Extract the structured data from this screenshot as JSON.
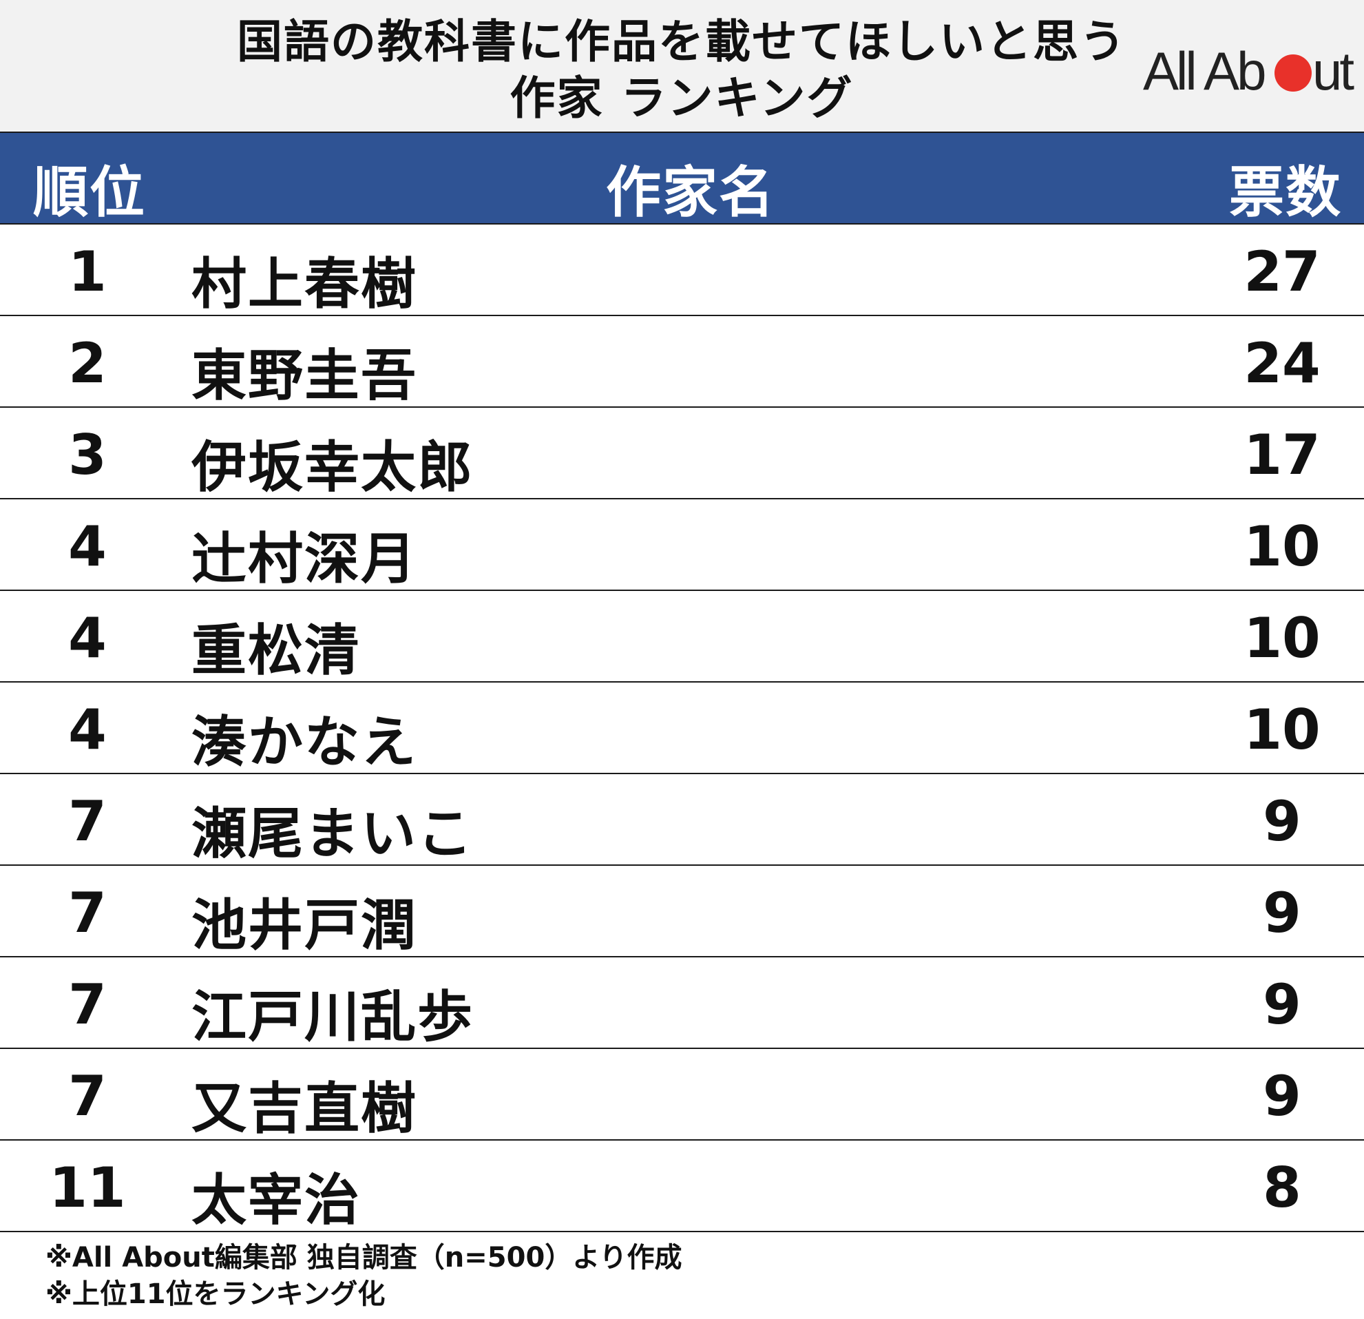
{
  "title_line1": "国語の教科書に作品を載せてほしいと思う",
  "title_line2": "作家 ランキング",
  "logo": {
    "text_left": "All Ab",
    "text_right": "ut",
    "dot_color": "#e8312a"
  },
  "colors": {
    "header_bg": "#2f5394",
    "title_bg": "#f2f2f2"
  },
  "chart_data": {
    "type": "table",
    "columns": [
      "順位",
      "作家名",
      "票数"
    ],
    "rows": [
      {
        "rank": "1",
        "name": "村上春樹",
        "votes": "27"
      },
      {
        "rank": "2",
        "name": "東野圭吾",
        "votes": "24"
      },
      {
        "rank": "3",
        "name": "伊坂幸太郎",
        "votes": "17"
      },
      {
        "rank": "4",
        "name": "辻村深月",
        "votes": "10"
      },
      {
        "rank": "4",
        "name": "重松清",
        "votes": "10"
      },
      {
        "rank": "4",
        "name": "湊かなえ",
        "votes": "10"
      },
      {
        "rank": "7",
        "name": "瀬尾まいこ",
        "votes": "9"
      },
      {
        "rank": "7",
        "name": "池井戸潤",
        "votes": "9"
      },
      {
        "rank": "7",
        "name": "江戸川乱歩",
        "votes": "9"
      },
      {
        "rank": "7",
        "name": "又吉直樹",
        "votes": "9"
      },
      {
        "rank": "11",
        "name": "太宰治",
        "votes": "8"
      }
    ]
  },
  "notes": [
    "※All About編集部 独自調査（n=500）より作成",
    "※上位11位をランキング化"
  ]
}
